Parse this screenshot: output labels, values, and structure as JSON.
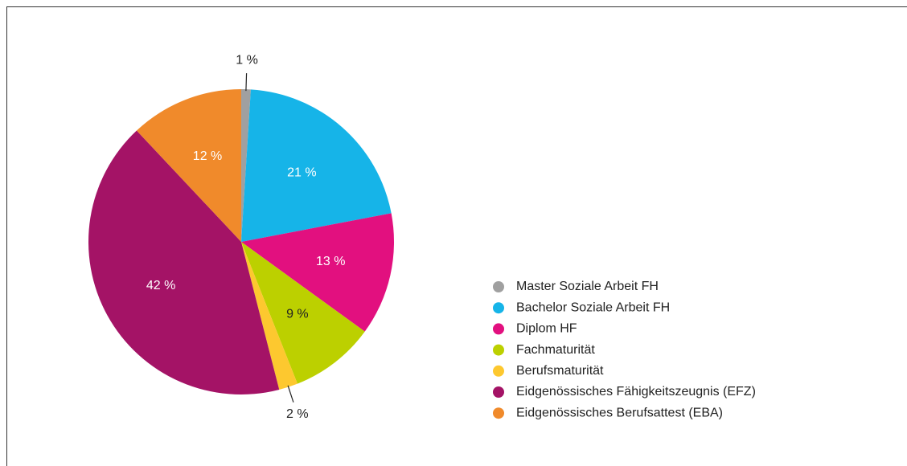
{
  "chart_data": {
    "type": "pie",
    "categories": [
      "Master Soziale Arbeit FH",
      "Bachelor Soziale Arbeit FH",
      "Diplom HF",
      "Fachmaturität",
      "Berufsmaturität",
      "Eidgenössisches Fähigkeitszeugnis (EFZ)",
      "Eidgenössisches Berufsattest (EBA)"
    ],
    "values": [
      1,
      21,
      13,
      9,
      2,
      42,
      12
    ],
    "value_labels": [
      "1 %",
      "21 %",
      "13 %",
      "9 %",
      "2 %",
      "42 %",
      "12 %"
    ],
    "colors": [
      "#a0a0a0",
      "#16b4e8",
      "#e2107f",
      "#bcd000",
      "#fdc82f",
      "#a41366",
      "#f08a2b"
    ],
    "legend": "right"
  }
}
